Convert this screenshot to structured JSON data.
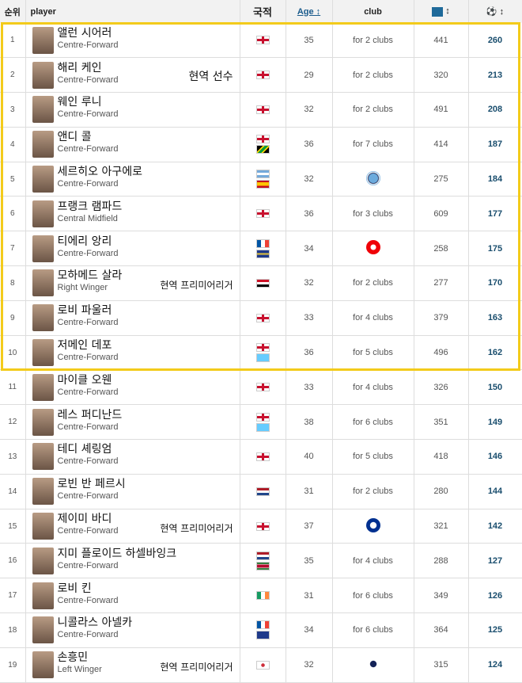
{
  "header": {
    "rank": "순위",
    "player": "player",
    "nation": "국적",
    "age": "Age ↕",
    "club": "club",
    "apps_sort": "↕",
    "goals_sort": "↕",
    "apps_icon": "appearances-icon",
    "goals_icon": "ball-icon"
  },
  "highlight_color": "#f3cb1b",
  "rows": [
    {
      "rank": "1",
      "name": "앨런 시어러",
      "pos": "Centre-Forward",
      "note": "",
      "flags": [
        "eng"
      ],
      "age": "35",
      "club": "for 2 clubs",
      "apps": "441",
      "goals": "260"
    },
    {
      "rank": "2",
      "name": "해리 케인",
      "pos": "Centre-Forward",
      "note": "현역 선수",
      "flags": [
        "eng"
      ],
      "age": "29",
      "club": "for 2 clubs",
      "apps": "320",
      "goals": "213"
    },
    {
      "rank": "3",
      "name": "웨인 루니",
      "pos": "Centre-Forward",
      "note": "",
      "flags": [
        "eng"
      ],
      "age": "32",
      "club": "for 2 clubs",
      "apps": "491",
      "goals": "208"
    },
    {
      "rank": "4",
      "name": "앤디 콜",
      "pos": "Centre-Forward",
      "note": "",
      "flags": [
        "eng",
        "jam"
      ],
      "age": "36",
      "club": "for 7 clubs",
      "apps": "414",
      "goals": "187"
    },
    {
      "rank": "5",
      "name": "세르히오 아구에로",
      "pos": "Centre-Forward",
      "note": "",
      "flags": [
        "arg",
        "esp"
      ],
      "age": "32",
      "club": "",
      "club_logo": "mancity",
      "apps": "275",
      "goals": "184"
    },
    {
      "rank": "6",
      "name": "프랭크 램파드",
      "pos": "Central Midfield",
      "note": "",
      "flags": [
        "eng"
      ],
      "age": "36",
      "club": "for 3 clubs",
      "apps": "609",
      "goals": "177"
    },
    {
      "rank": "7",
      "name": "티에리 앙리",
      "pos": "Centre-Forward",
      "note": "",
      "flags": [
        "fra",
        "glp"
      ],
      "age": "34",
      "club": "",
      "club_logo": "arsenal",
      "apps": "258",
      "goals": "175"
    },
    {
      "rank": "8",
      "name": "모하메드 살라",
      "pos": "Right Winger",
      "note": "현역 프리미어리거",
      "flags": [
        "egy"
      ],
      "age": "32",
      "club": "for 2 clubs",
      "apps": "277",
      "goals": "170"
    },
    {
      "rank": "9",
      "name": "로비 파울러",
      "pos": "Centre-Forward",
      "note": "",
      "flags": [
        "eng"
      ],
      "age": "33",
      "club": "for 4 clubs",
      "apps": "379",
      "goals": "163"
    },
    {
      "rank": "10",
      "name": "저메인 데포",
      "pos": "Centre-Forward",
      "note": "",
      "flags": [
        "eng",
        "lca"
      ],
      "age": "36",
      "club": "for 5 clubs",
      "apps": "496",
      "goals": "162"
    },
    {
      "rank": "11",
      "name": "마이클 오웬",
      "pos": "Centre-Forward",
      "note": "",
      "flags": [
        "eng"
      ],
      "age": "33",
      "club": "for 4 clubs",
      "apps": "326",
      "goals": "150"
    },
    {
      "rank": "12",
      "name": "레스 퍼디난드",
      "pos": "Centre-Forward",
      "note": "",
      "flags": [
        "eng",
        "lca"
      ],
      "age": "38",
      "club": "for 6 clubs",
      "apps": "351",
      "goals": "149"
    },
    {
      "rank": "13",
      "name": "테디 셰링엄",
      "pos": "Centre-Forward",
      "note": "",
      "flags": [
        "eng"
      ],
      "age": "40",
      "club": "for 5 clubs",
      "apps": "418",
      "goals": "146"
    },
    {
      "rank": "14",
      "name": "로빈 반 페르시",
      "pos": "Centre-Forward",
      "note": "",
      "flags": [
        "ned"
      ],
      "age": "31",
      "club": "for 2 clubs",
      "apps": "280",
      "goals": "144"
    },
    {
      "rank": "15",
      "name": "제이미 바디",
      "pos": "Centre-Forward",
      "note": "현역 프리미어리거",
      "flags": [
        "eng"
      ],
      "age": "37",
      "club": "",
      "club_logo": "leicester",
      "apps": "321",
      "goals": "142"
    },
    {
      "rank": "16",
      "name": "지미 플로이드 하셀바잉크",
      "pos": "Centre-Forward",
      "note": "",
      "flags": [
        "ned",
        "sur"
      ],
      "age": "35",
      "club": "for 4 clubs",
      "apps": "288",
      "goals": "127"
    },
    {
      "rank": "17",
      "name": "로비 킨",
      "pos": "Centre-Forward",
      "note": "",
      "flags": [
        "irl"
      ],
      "age": "31",
      "club": "for 6 clubs",
      "apps": "349",
      "goals": "126"
    },
    {
      "rank": "18",
      "name": "니콜라스 아넬카",
      "pos": "Centre-Forward",
      "note": "",
      "flags": [
        "fra",
        "mtq"
      ],
      "age": "34",
      "club": "for 6 clubs",
      "apps": "364",
      "goals": "125"
    },
    {
      "rank": "19",
      "name": "손흥민",
      "pos": "Left Winger",
      "note": "현역 프리미어리거",
      "flags": [
        "kor"
      ],
      "age": "32",
      "club": "",
      "club_logo": "tottenham",
      "apps": "315",
      "goals": "124"
    }
  ]
}
